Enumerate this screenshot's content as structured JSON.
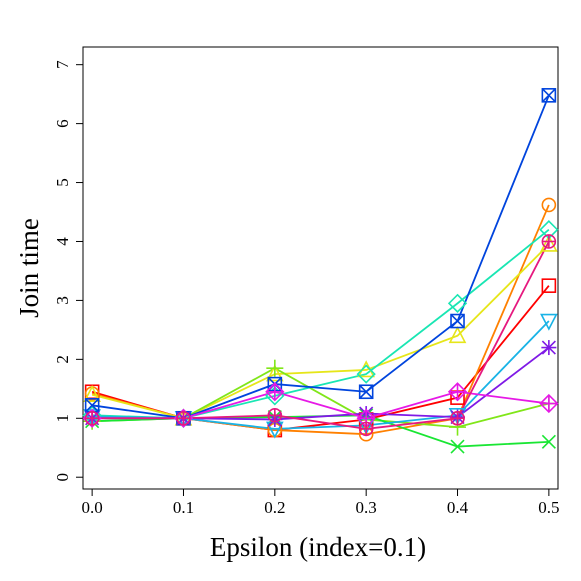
{
  "chart_data": {
    "type": "line",
    "title": "",
    "xlabel": "Epsilon (index=0.1)",
    "ylabel": "Join time",
    "x": [
      0.0,
      0.1,
      0.2,
      0.3,
      0.4,
      0.5
    ],
    "xticks": [
      "0.0",
      "0.1",
      "0.2",
      "0.3",
      "0.4",
      "0.5"
    ],
    "yticks": [
      "0",
      "1",
      "2",
      "3",
      "4",
      "5",
      "6",
      "7"
    ],
    "xlim": [
      -0.01,
      0.51
    ],
    "ylim": [
      -0.2,
      7.3
    ],
    "grid": false,
    "legend": false,
    "series": [
      {
        "color": "#ff0000",
        "marker": "square",
        "values": [
          1.45,
          1.0,
          0.8,
          0.98,
          1.35,
          3.25
        ]
      },
      {
        "color": "#ff8000",
        "marker": "circle",
        "values": [
          1.42,
          1.0,
          0.8,
          0.73,
          1.0,
          4.62
        ]
      },
      {
        "color": "#e6e619",
        "marker": "triangle-up",
        "values": [
          1.4,
          1.0,
          1.75,
          1.82,
          2.4,
          3.95
        ]
      },
      {
        "color": "#80e619",
        "marker": "plus",
        "values": [
          0.95,
          1.0,
          1.85,
          0.98,
          0.85,
          1.25
        ]
      },
      {
        "color": "#19e633",
        "marker": "cross",
        "values": [
          0.95,
          1.0,
          1.02,
          1.05,
          0.52,
          0.6
        ]
      },
      {
        "color": "#19e6b3",
        "marker": "diamond",
        "values": [
          1.05,
          1.0,
          1.38,
          1.75,
          2.95,
          4.2
        ]
      },
      {
        "color": "#19b3e6",
        "marker": "triangle-down",
        "values": [
          1.03,
          1.0,
          0.82,
          0.88,
          1.05,
          2.65
        ]
      },
      {
        "color": "#0044dd",
        "marker": "square-x",
        "values": [
          1.22,
          1.0,
          1.58,
          1.45,
          2.65,
          6.48
        ]
      },
      {
        "color": "#7f19e6",
        "marker": "asterisk",
        "values": [
          1.0,
          1.0,
          0.98,
          1.08,
          1.02,
          2.2
        ]
      },
      {
        "color": "#e619e6",
        "marker": "diamond-plus",
        "values": [
          1.0,
          1.0,
          1.45,
          1.0,
          1.45,
          1.25
        ]
      },
      {
        "color": "#e6197f",
        "marker": "circle-plus",
        "values": [
          1.0,
          1.0,
          1.05,
          0.82,
          1.0,
          4.0
        ]
      }
    ]
  }
}
